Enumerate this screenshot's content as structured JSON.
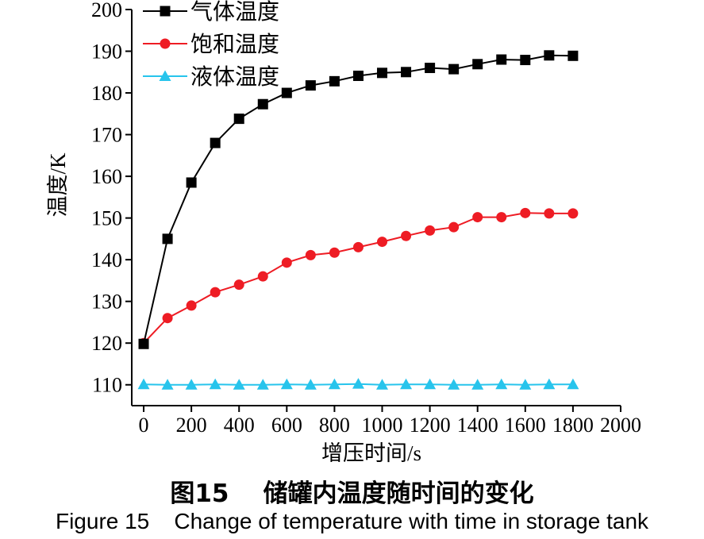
{
  "caption": {
    "cn": "图15    储罐内温度随时间的变化",
    "en": "Figure 15    Change of temperature with time in storage tank"
  },
  "chart_data": {
    "type": "line",
    "xlabel": "增压时间/s",
    "ylabel": "温度/K",
    "xlim": [
      -50,
      2000
    ],
    "ylim": [
      105,
      200
    ],
    "xticks": [
      0,
      200,
      400,
      600,
      800,
      1000,
      1200,
      1400,
      1600,
      1800,
      2000
    ],
    "yticks": [
      110,
      120,
      130,
      140,
      150,
      160,
      170,
      180,
      190,
      200
    ],
    "x": [
      0,
      100,
      200,
      300,
      400,
      500,
      600,
      700,
      800,
      900,
      1000,
      1100,
      1200,
      1300,
      1400,
      1500,
      1600,
      1700,
      1800
    ],
    "legend_position": "top-left",
    "grid": false,
    "series": [
      {
        "name": "气体温度",
        "color": "#000000",
        "marker": "square",
        "values": [
          119.8,
          145,
          158.5,
          168,
          173.8,
          177.3,
          180,
          181.8,
          182.8,
          184.1,
          184.8,
          185,
          186,
          185.7,
          186.9,
          188,
          187.9,
          189,
          188.9
        ]
      },
      {
        "name": "饱和温度",
        "color": "#ee1c24",
        "marker": "circle",
        "values": [
          120,
          126,
          129,
          132.2,
          134,
          136,
          139.3,
          141.1,
          141.7,
          143,
          144.3,
          145.7,
          147,
          147.8,
          150.2,
          150.2,
          151.2,
          151.1,
          151.1
        ]
      },
      {
        "name": "液体温度",
        "color": "#27c4ec",
        "marker": "triangle",
        "values": [
          110.1,
          110,
          110,
          110.1,
          110,
          110,
          110.1,
          110,
          110.1,
          110.2,
          110,
          110.1,
          110.1,
          110,
          110,
          110.1,
          110,
          110.1,
          110.1
        ]
      }
    ]
  }
}
